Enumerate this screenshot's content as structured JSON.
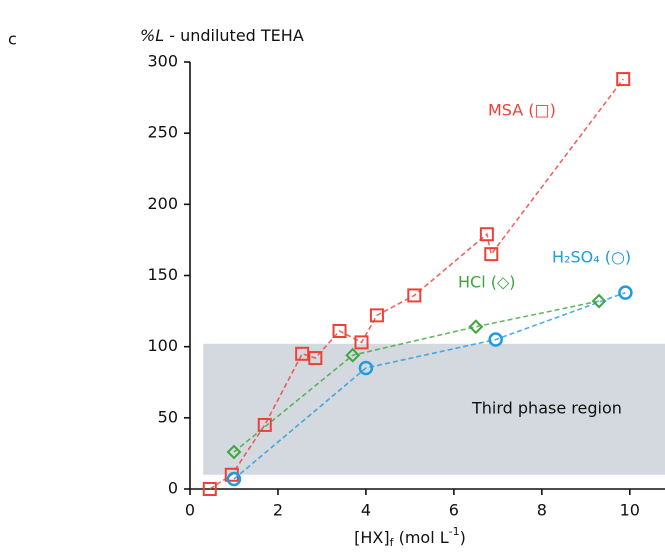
{
  "panel_label": "c",
  "chart_data": {
    "type": "line",
    "y_label": [
      "%L",
      " - undiluted TEHA"
    ],
    "x_label": [
      "[HX]",
      "f",
      " (mol L",
      "-1",
      ")"
    ],
    "xlim": [
      0,
      10.8
    ],
    "xticks": [
      0,
      2,
      4,
      6,
      8,
      10
    ],
    "ylim": [
      0,
      300
    ],
    "yticks": [
      0,
      50,
      100,
      150,
      200,
      250,
      300
    ],
    "grid": false,
    "region": {
      "label": "Third phase region",
      "x": [
        0.3,
        10.8
      ],
      "y": [
        10,
        102
      ],
      "color": "#d3d9de"
    },
    "series": [
      {
        "name": "MSA (□)",
        "color": "#ee4037",
        "marker": "square",
        "x": [
          0.45,
          0.95,
          1.7,
          2.55,
          2.85,
          3.4,
          3.9,
          4.25,
          5.1,
          6.75,
          6.85,
          9.85
        ],
        "values": [
          0,
          10,
          45,
          95,
          92,
          111,
          103,
          122,
          136,
          179,
          165,
          288
        ]
      },
      {
        "name": "HCl (◇)",
        "color": "#3fa53f",
        "marker": "diamond",
        "x": [
          1.0,
          3.7,
          6.5,
          9.3
        ],
        "values": [
          26,
          94,
          114,
          132
        ]
      },
      {
        "name": "H₂SO₄ (○)",
        "color": "#1f9be0",
        "marker": "circle",
        "x": [
          1.0,
          4.0,
          6.95,
          9.9
        ],
        "values": [
          7,
          85,
          105,
          138
        ]
      }
    ]
  }
}
